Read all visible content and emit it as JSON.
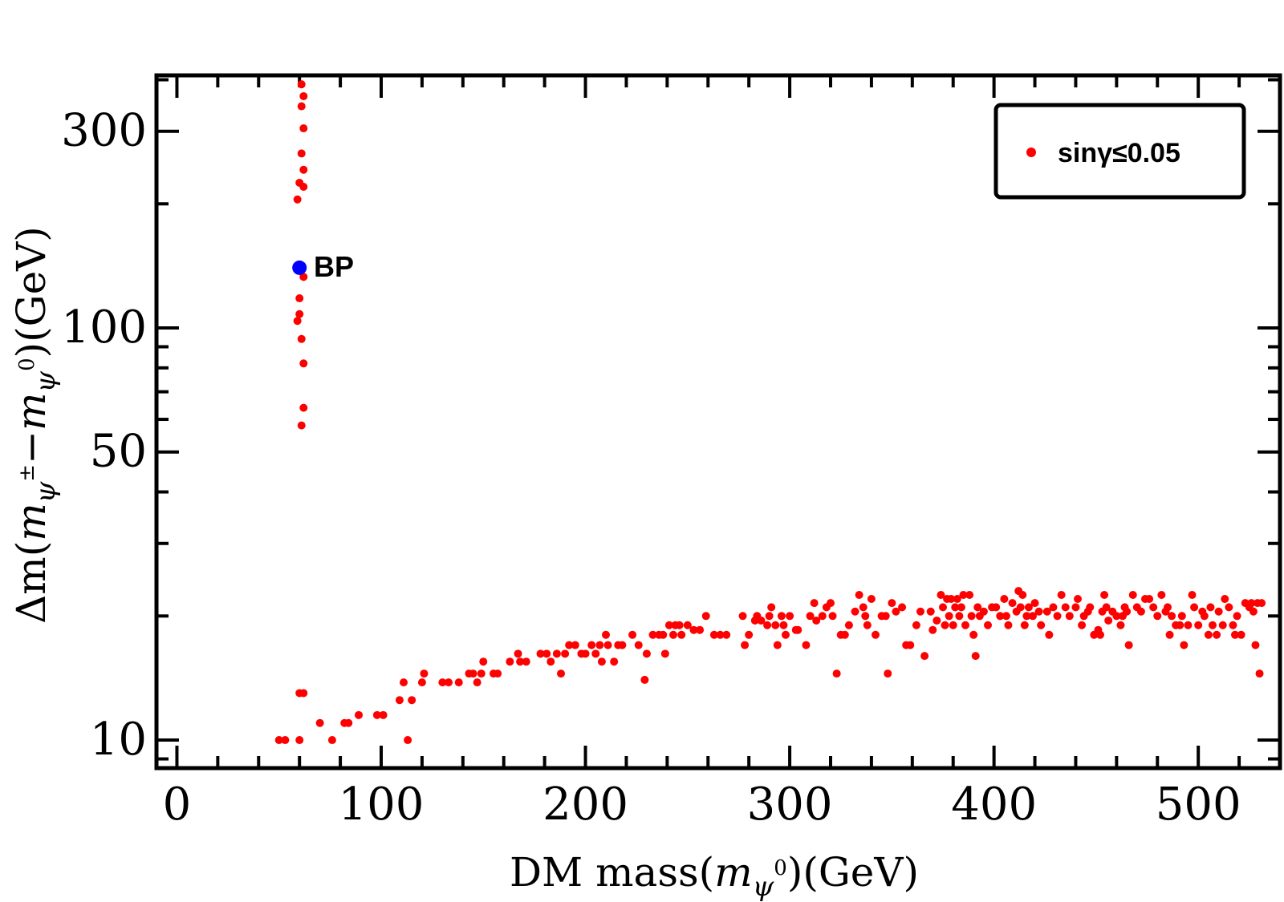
{
  "chart_data": {
    "type": "scatter",
    "x_scale": "linear",
    "y_scale": "log",
    "xlim": [
      -10,
      540
    ],
    "ylim": [
      8.55,
      410
    ],
    "x_ticks": [
      0,
      100,
      200,
      300,
      400,
      500
    ],
    "x_tick_labels": [
      "0",
      "100",
      "200",
      "300",
      "400",
      "500"
    ],
    "y_ticks": [
      10,
      50,
      100,
      300
    ],
    "y_tick_labels": [
      "10",
      "50",
      "100",
      "300"
    ],
    "xlabel": {
      "prefix": "DM mass(",
      "italic_main": "m",
      "italic_sub": "ψ",
      "sup": "0",
      "suffix": ")(GeV)"
    },
    "ylabel": {
      "prefix": "Δm(",
      "italic_main1": "m",
      "italic_sub1": "ψ",
      "sup1": "±",
      "minus": "−",
      "italic_main2": "m",
      "italic_sub2": "ψ",
      "sup2": "0",
      "suffix": ")(GeV)"
    },
    "legend": {
      "label": "sinγ≤0.05",
      "position": "top-right",
      "color": "#ff0000"
    },
    "annotation": {
      "text": "BP",
      "x": 60,
      "y": 140,
      "color": "#0000ff"
    },
    "series": [
      {
        "name": "sinγ≤0.05",
        "color": "#ff0000",
        "points": [
          [
            61,
            390
          ],
          [
            62,
            365
          ],
          [
            61,
            345
          ],
          [
            62,
            305
          ],
          [
            61,
            265
          ],
          [
            62,
            242
          ],
          [
            60,
            225
          ],
          [
            62,
            220
          ],
          [
            59,
            205
          ],
          [
            62,
            133
          ],
          [
            60,
            118
          ],
          [
            60,
            108
          ],
          [
            59,
            104
          ],
          [
            61,
            94
          ],
          [
            62,
            82
          ],
          [
            62,
            64
          ],
          [
            61,
            58
          ],
          [
            60,
            13
          ],
          [
            62,
            13
          ],
          [
            60,
            10
          ],
          [
            50,
            10
          ],
          [
            53,
            10
          ],
          [
            70,
            11
          ],
          [
            76,
            10
          ],
          [
            82,
            11
          ],
          [
            84,
            11
          ],
          [
            89,
            11.5
          ],
          [
            98,
            11.5
          ],
          [
            101,
            11.5
          ],
          [
            109,
            12.5
          ],
          [
            111,
            13.8
          ],
          [
            113,
            10
          ],
          [
            115,
            12.5
          ],
          [
            120,
            13.8
          ],
          [
            121,
            14.5
          ],
          [
            130,
            13.8
          ],
          [
            133,
            13.8
          ],
          [
            138,
            13.8
          ],
          [
            143,
            14.5
          ],
          [
            145,
            14.5
          ],
          [
            147,
            13.8
          ],
          [
            149,
            14.5
          ],
          [
            150,
            15.5
          ],
          [
            155,
            14.5
          ],
          [
            157,
            14.5
          ],
          [
            163,
            15.5
          ],
          [
            167,
            16.2
          ],
          [
            168,
            15.5
          ],
          [
            171,
            15.5
          ],
          [
            178,
            16.2
          ],
          [
            181,
            16.2
          ],
          [
            183,
            15.5
          ],
          [
            186,
            16.2
          ],
          [
            188,
            14.5
          ],
          [
            190,
            16.2
          ],
          [
            192,
            17
          ],
          [
            195,
            17
          ],
          [
            198,
            16.2
          ],
          [
            200,
            16.2
          ],
          [
            203,
            17
          ],
          [
            205,
            16.2
          ],
          [
            207,
            17
          ],
          [
            208,
            15.5
          ],
          [
            210,
            18
          ],
          [
            211,
            17
          ],
          [
            214,
            15.5
          ],
          [
            216,
            17
          ],
          [
            218,
            17
          ],
          [
            223,
            18
          ],
          [
            226,
            17
          ],
          [
            229,
            14
          ],
          [
            230,
            16.2
          ],
          [
            233,
            18
          ],
          [
            236,
            18
          ],
          [
            238,
            18
          ],
          [
            239,
            16.2
          ],
          [
            241,
            19
          ],
          [
            243,
            18
          ],
          [
            244,
            19
          ],
          [
            246,
            19
          ],
          [
            247,
            18
          ],
          [
            250,
            19
          ],
          [
            253,
            18.5
          ],
          [
            256,
            18.5
          ],
          [
            259,
            20
          ],
          [
            263,
            18
          ],
          [
            266,
            18
          ],
          [
            269,
            18
          ],
          [
            277,
            20
          ],
          [
            278,
            17
          ],
          [
            280,
            18
          ],
          [
            283,
            19.5
          ],
          [
            284,
            20
          ],
          [
            286,
            19.5
          ],
          [
            289,
            19
          ],
          [
            290,
            20
          ],
          [
            291,
            21
          ],
          [
            293,
            19
          ],
          [
            294,
            17
          ],
          [
            296,
            20
          ],
          [
            297,
            19
          ],
          [
            298,
            18
          ],
          [
            300,
            20
          ],
          [
            303,
            18.5
          ],
          [
            304,
            18.5
          ],
          [
            308,
            17
          ],
          [
            310,
            20
          ],
          [
            312,
            21.5
          ],
          [
            313,
            19.5
          ],
          [
            316,
            20
          ],
          [
            318,
            21
          ],
          [
            320,
            21.5
          ],
          [
            321,
            20
          ],
          [
            323,
            14.5
          ],
          [
            325,
            18
          ],
          [
            327,
            18
          ],
          [
            329,
            19
          ],
          [
            332,
            20.5
          ],
          [
            334,
            22.5
          ],
          [
            336,
            21
          ],
          [
            337,
            20
          ],
          [
            338,
            19
          ],
          [
            340,
            22
          ],
          [
            342,
            18
          ],
          [
            345,
            20
          ],
          [
            347,
            20
          ],
          [
            348,
            14.5
          ],
          [
            350,
            21.5
          ],
          [
            352,
            20.5
          ],
          [
            355,
            21
          ],
          [
            357,
            17
          ],
          [
            359,
            17
          ],
          [
            362,
            19
          ],
          [
            364,
            20.5
          ],
          [
            366,
            16
          ],
          [
            369,
            20.5
          ],
          [
            370,
            18.5
          ],
          [
            372,
            19.5
          ],
          [
            374,
            22.5
          ],
          [
            375,
            21
          ],
          [
            376,
            19
          ],
          [
            377,
            22
          ],
          [
            378,
            20
          ],
          [
            379,
            22
          ],
          [
            380,
            19
          ],
          [
            381,
            21
          ],
          [
            382,
            22
          ],
          [
            383,
            20
          ],
          [
            384,
            21
          ],
          [
            385,
            22.5
          ],
          [
            386,
            19
          ],
          [
            388,
            22.5
          ],
          [
            389,
            20
          ],
          [
            390,
            18
          ],
          [
            391,
            16
          ],
          [
            392,
            21
          ],
          [
            393,
            20
          ],
          [
            395,
            20.5
          ],
          [
            397,
            19
          ],
          [
            399,
            21
          ],
          [
            401,
            21
          ],
          [
            403,
            20
          ],
          [
            405,
            22
          ],
          [
            406,
            20
          ],
          [
            407,
            19
          ],
          [
            409,
            21.5
          ],
          [
            411,
            20.5
          ],
          [
            412,
            23
          ],
          [
            413,
            21
          ],
          [
            414,
            22.5
          ],
          [
            415,
            19
          ],
          [
            416,
            20
          ],
          [
            417,
            21
          ],
          [
            419,
            20
          ],
          [
            420,
            21.5
          ],
          [
            422,
            20.5
          ],
          [
            423,
            19
          ],
          [
            426,
            20.5
          ],
          [
            427,
            18
          ],
          [
            429,
            21
          ],
          [
            431,
            20
          ],
          [
            433,
            22.5
          ],
          [
            435,
            21
          ],
          [
            437,
            20
          ],
          [
            440,
            21
          ],
          [
            441,
            22
          ],
          [
            443,
            19
          ],
          [
            444,
            20
          ],
          [
            446,
            20.5
          ],
          [
            447,
            21
          ],
          [
            449,
            18
          ],
          [
            451,
            18.5
          ],
          [
            452,
            18
          ],
          [
            453,
            20.5
          ],
          [
            454,
            22.5
          ],
          [
            455,
            21
          ],
          [
            456,
            19.5
          ],
          [
            458,
            20.5
          ],
          [
            460,
            20
          ],
          [
            462,
            19
          ],
          [
            463,
            20
          ],
          [
            464,
            21
          ],
          [
            465,
            20.5
          ],
          [
            466,
            17
          ],
          [
            468,
            22.5
          ],
          [
            470,
            21
          ],
          [
            472,
            20.5
          ],
          [
            474,
            22
          ],
          [
            476,
            22
          ],
          [
            478,
            21
          ],
          [
            480,
            20
          ],
          [
            482,
            22.5
          ],
          [
            484,
            20.5
          ],
          [
            485,
            21
          ],
          [
            486,
            18
          ],
          [
            487,
            20
          ],
          [
            489,
            19
          ],
          [
            491,
            19
          ],
          [
            492,
            20
          ],
          [
            493,
            17
          ],
          [
            495,
            19
          ],
          [
            497,
            22.5
          ],
          [
            498,
            21
          ],
          [
            500,
            19
          ],
          [
            502,
            20.5
          ],
          [
            503,
            20
          ],
          [
            505,
            18
          ],
          [
            506,
            21
          ],
          [
            507,
            19
          ],
          [
            509,
            18
          ],
          [
            510,
            20.5
          ],
          [
            512,
            19
          ],
          [
            513,
            22
          ],
          [
            515,
            21
          ],
          [
            517,
            19
          ],
          [
            518,
            18
          ],
          [
            519,
            20
          ],
          [
            521,
            18
          ],
          [
            523,
            21.5
          ],
          [
            525,
            21
          ],
          [
            526,
            21.5
          ],
          [
            527,
            20.5
          ],
          [
            528,
            17
          ],
          [
            529,
            21.5
          ],
          [
            530,
            14.5
          ],
          [
            531,
            21.5
          ]
        ]
      },
      {
        "name": "BP",
        "color": "#0000ff",
        "points": [
          [
            60,
            140
          ]
        ]
      }
    ]
  }
}
